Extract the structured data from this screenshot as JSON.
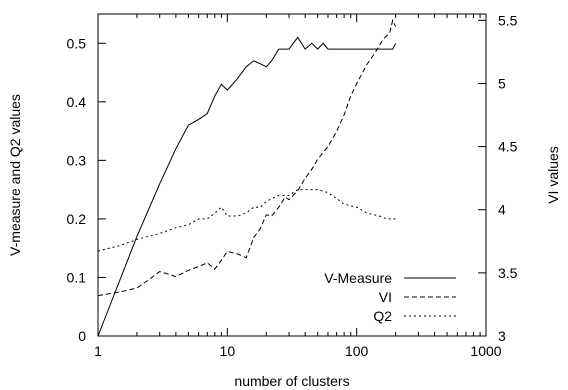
{
  "chart_data": {
    "type": "line",
    "title": "",
    "xlabel": "number of clusters",
    "ylabel_left": "V-measure and Q2 values",
    "ylabel_right": "VI values",
    "x_scale": "log",
    "xlim": [
      1,
      1000
    ],
    "ylim_left": [
      0,
      0.55
    ],
    "ylim_right": [
      3,
      5.55
    ],
    "x_ticks": [
      {
        "value": 1,
        "label": "1"
      },
      {
        "value": 10,
        "label": "10"
      },
      {
        "value": 100,
        "label": "100"
      },
      {
        "value": 1000,
        "label": "1000"
      }
    ],
    "y_ticks_left": [
      "0",
      "0.1",
      "0.2",
      "0.3",
      "0.4",
      "0.5"
    ],
    "y_ticks_right": [
      "3",
      "3.5",
      "4",
      "4.5",
      "5",
      "5.5"
    ],
    "grid": false,
    "legend_position": "bottom-right",
    "series": [
      {
        "name": "V-Measure",
        "axis": "left",
        "dash": "solid",
        "x": [
          1,
          2,
          3,
          4,
          5,
          6,
          7,
          8,
          9,
          10,
          12,
          14,
          16,
          18,
          20,
          22,
          25,
          28,
          30,
          35,
          40,
          45,
          50,
          55,
          60,
          70,
          80,
          100,
          130,
          160,
          190,
          200
        ],
        "y": [
          0.0,
          0.17,
          0.26,
          0.32,
          0.36,
          0.37,
          0.38,
          0.41,
          0.43,
          0.42,
          0.44,
          0.46,
          0.47,
          0.465,
          0.46,
          0.47,
          0.49,
          0.49,
          0.49,
          0.51,
          0.49,
          0.5,
          0.49,
          0.5,
          0.49,
          0.49,
          0.49,
          0.49,
          0.49,
          0.49,
          0.49,
          0.5
        ]
      },
      {
        "name": "VI",
        "axis": "right",
        "dash": "dashed",
        "x": [
          1,
          1.5,
          2,
          2.5,
          3,
          3.5,
          4,
          5,
          6,
          7,
          8,
          9,
          10,
          12,
          14,
          16,
          18,
          20,
          22,
          25,
          28,
          30,
          35,
          40,
          45,
          50,
          60,
          70,
          80,
          90,
          100,
          120,
          140,
          160,
          180,
          190,
          200
        ],
        "y": [
          3.32,
          3.35,
          3.38,
          3.45,
          3.51,
          3.49,
          3.47,
          3.52,
          3.55,
          3.58,
          3.53,
          3.6,
          3.67,
          3.65,
          3.62,
          3.78,
          3.85,
          3.96,
          3.95,
          4.02,
          4.1,
          4.08,
          4.15,
          4.25,
          4.32,
          4.4,
          4.5,
          4.62,
          4.75,
          4.9,
          5.0,
          5.15,
          5.25,
          5.35,
          5.4,
          5.5,
          5.45
        ]
      },
      {
        "name": "Q2",
        "axis": "left",
        "dash": "dotted",
        "x": [
          1,
          1.5,
          2,
          3,
          4,
          5,
          6,
          7,
          8,
          9,
          10,
          12,
          14,
          16,
          18,
          20,
          25,
          30,
          35,
          40,
          50,
          60,
          70,
          80,
          100,
          120,
          150,
          170,
          200
        ],
        "y": [
          0.145,
          0.155,
          0.165,
          0.175,
          0.185,
          0.19,
          0.2,
          0.2,
          0.21,
          0.22,
          0.205,
          0.205,
          0.21,
          0.22,
          0.22,
          0.23,
          0.24,
          0.24,
          0.25,
          0.25,
          0.25,
          0.245,
          0.235,
          0.225,
          0.22,
          0.21,
          0.205,
          0.2,
          0.2
        ]
      }
    ]
  }
}
